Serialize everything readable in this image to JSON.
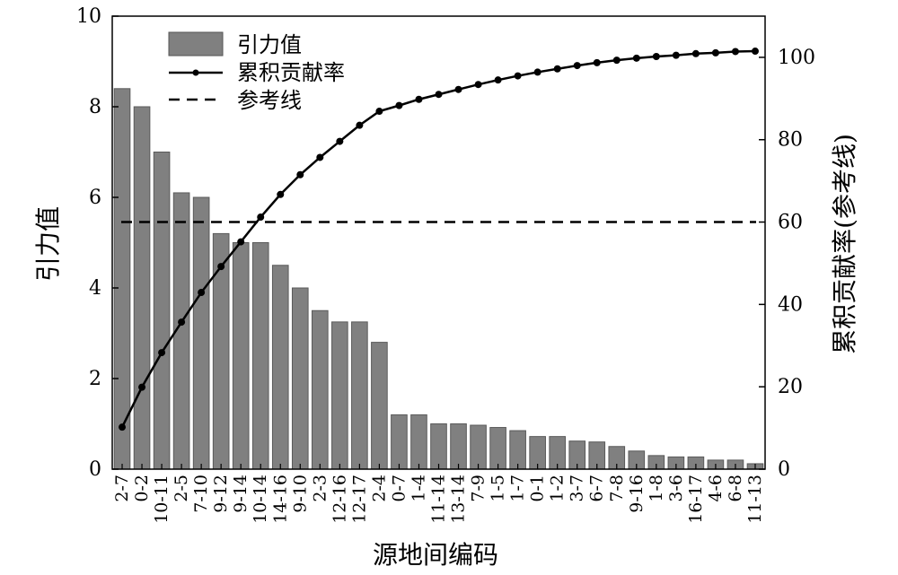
{
  "chart_data": {
    "type": "bar",
    "categories": [
      "2-7",
      "0-2",
      "10-11",
      "2-5",
      "7-10",
      "9-12",
      "9-14",
      "10-14",
      "14-16",
      "9-10",
      "2-3",
      "12-16",
      "12-17",
      "2-4",
      "0-7",
      "1-4",
      "11-14",
      "13-14",
      "7-9",
      "1-5",
      "1-7",
      "0-1",
      "1-2",
      "3-7",
      "6-7",
      "7-8",
      "9-16",
      "1-8",
      "3-6",
      "16-17",
      "4-6",
      "6-8",
      "11-13"
    ],
    "series": [
      {
        "name": "引力值",
        "type": "bar",
        "axis": "left",
        "color": "#808080",
        "values": [
          8.4,
          8.0,
          7.0,
          6.1,
          6.0,
          5.2,
          5.0,
          5.0,
          4.5,
          4.0,
          3.5,
          3.25,
          3.25,
          2.8,
          1.2,
          1.2,
          1.0,
          1.0,
          0.97,
          0.92,
          0.85,
          0.72,
          0.72,
          0.62,
          0.6,
          0.5,
          0.4,
          0.3,
          0.27,
          0.27,
          0.2,
          0.2,
          0.12
        ]
      },
      {
        "name": "累积贡献率",
        "type": "line",
        "axis": "right",
        "color": "#000000",
        "values": [
          10.2,
          19.9,
          28.3,
          35.7,
          42.9,
          49.2,
          55.2,
          61.2,
          66.7,
          71.5,
          75.7,
          79.6,
          83.5,
          86.9,
          88.3,
          89.8,
          91.0,
          92.2,
          93.4,
          94.5,
          95.5,
          96.4,
          97.2,
          98.0,
          98.7,
          99.3,
          99.8,
          100.2,
          100.5,
          100.9,
          101.1,
          101.4,
          101.5
        ]
      },
      {
        "name": "参考线",
        "type": "reference",
        "axis": "right",
        "style": "dashed",
        "value": 60
      }
    ],
    "xlabel": "源地间编码",
    "ylabel": "引力值",
    "y2label": "累积贡献率(参考线)",
    "ylim": [
      0,
      10
    ],
    "y2lim": [
      0,
      110
    ],
    "yticks": [
      "0",
      "2",
      "4",
      "6",
      "8",
      "10"
    ],
    "y2ticks": [
      "0",
      "20",
      "40",
      "60",
      "80",
      "100"
    ],
    "grid": false,
    "legend_position": "top-left"
  }
}
